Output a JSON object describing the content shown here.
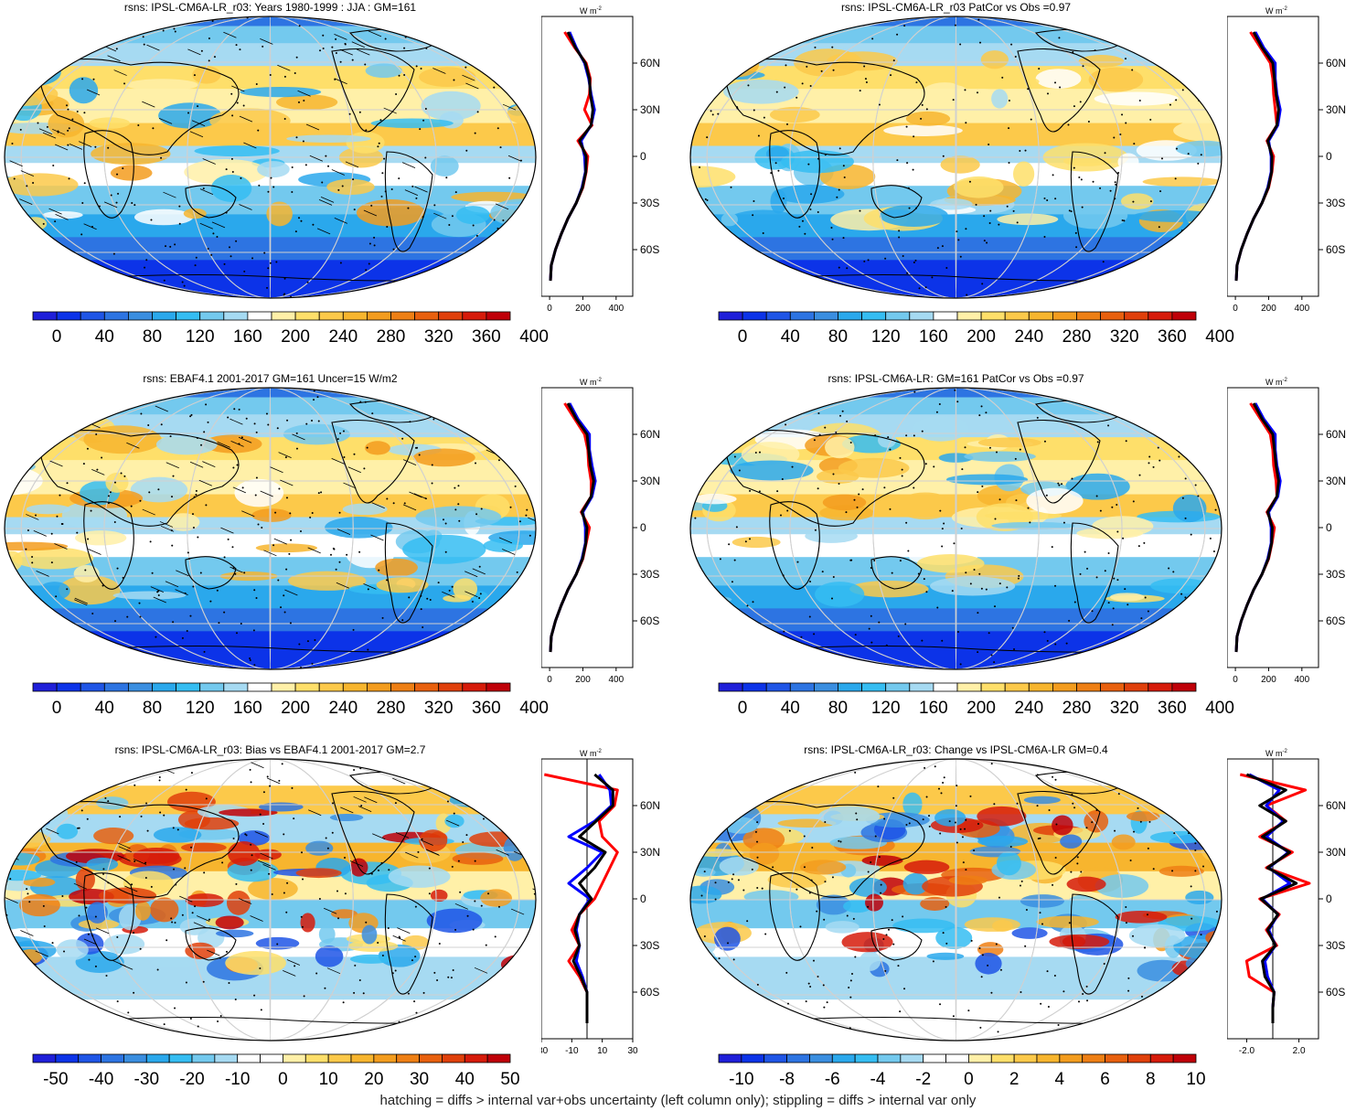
{
  "footer": "hatching = diffs > internal var+obs uncertainty (left column only); stippling = diffs > internal var only",
  "colors": {
    "abs": [
      "#1f1fd9",
      "#0c33e8",
      "#1f55e6",
      "#2d74e2",
      "#3a8ee0",
      "#2aa8ec",
      "#35bdf2",
      "#73c9ee",
      "#a6daf2",
      "#ffffff",
      "#fff0a8",
      "#fedf6a",
      "#fcc94a",
      "#f7b52e",
      "#f39c1e",
      "#ee7f14",
      "#e8600e",
      "#e0400b",
      "#d61b0a",
      "#bf0008"
    ],
    "diff": [
      "#1f1fd9",
      "#0c33e8",
      "#1f55e6",
      "#2d74e2",
      "#3a8ee0",
      "#2aa8ec",
      "#35bdf2",
      "#73c9ee",
      "#a6daf2",
      "#ffffff",
      "#ffffff",
      "#fff0a8",
      "#fedf6a",
      "#fcc94a",
      "#f7b52e",
      "#f39c1e",
      "#ee7f14",
      "#e8600e",
      "#e0400b",
      "#d61b0a",
      "#bf0008"
    ]
  },
  "profile_axis": {
    "unit": "W m",
    "unit_sup": "-2",
    "lat_ticks": [
      "60N",
      "30N",
      "0",
      "30S",
      "60S"
    ],
    "lat_values": [
      60,
      30,
      0,
      -30,
      -60
    ]
  },
  "chart_data": [
    {
      "type": "heatmap",
      "title": "rsns: IPSL-CM6A-LR_r03: Years 1980-1999 : JJA : GM=161",
      "colorbar_labels": [
        "0",
        "40",
        "80",
        "120",
        "160",
        "200",
        "240",
        "280",
        "320",
        "360",
        "400"
      ],
      "palette": "abs",
      "hatching": true,
      "stippling": true,
      "zonal_profile": {
        "xticks": [
          "0",
          "200",
          "400"
        ],
        "xlim": [
          -50,
          500
        ],
        "lat": [
          80,
          70,
          60,
          50,
          40,
          30,
          20,
          10,
          0,
          -10,
          -20,
          -30,
          -40,
          -50,
          -60,
          -70,
          -80
        ],
        "series": [
          {
            "color": "#ff0000",
            "values": [
              90,
              150,
              220,
              245,
              240,
              210,
              255,
              170,
              230,
              220,
              200,
              160,
              110,
              70,
              35,
              10,
              5
            ]
          },
          {
            "color": "#0000ff",
            "values": [
              120,
              160,
              210,
              235,
              250,
              270,
              250,
              190,
              210,
              215,
              195,
              160,
              110,
              70,
              35,
              10,
              5
            ]
          },
          {
            "color": "#000000",
            "values": [
              110,
              155,
              215,
              240,
              245,
              260,
              250,
              180,
              220,
              218,
              198,
              160,
              110,
              70,
              35,
              10,
              5
            ]
          }
        ]
      }
    },
    {
      "type": "heatmap",
      "title": "rsns: IPSL-CM6A-LR_r03 PatCor vs Obs =0.97",
      "colorbar_labels": [
        "0",
        "40",
        "80",
        "120",
        "160",
        "200",
        "240",
        "280",
        "320",
        "360",
        "400"
      ],
      "palette": "abs",
      "hatching": false,
      "stippling": true,
      "zonal_profile": {
        "xticks": [
          "0",
          "200",
          "400"
        ],
        "xlim": [
          -50,
          500
        ],
        "lat": [
          80,
          70,
          60,
          50,
          40,
          30,
          20,
          10,
          0,
          -10,
          -20,
          -30,
          -40,
          -50,
          -60,
          -70,
          -80
        ],
        "series": [
          {
            "color": "#ff0000",
            "values": [
              90,
              150,
              210,
              225,
              230,
              240,
              250,
              190,
              230,
              220,
              200,
              160,
              110,
              70,
              35,
              10,
              5
            ]
          },
          {
            "color": "#0000ff",
            "values": [
              120,
              170,
              240,
              240,
              250,
              270,
              255,
              200,
              215,
              215,
              195,
              160,
              110,
              70,
              35,
              10,
              5
            ]
          },
          {
            "color": "#000000",
            "values": [
              110,
              160,
              225,
              235,
              245,
              260,
              250,
              195,
              220,
              218,
              198,
              160,
              110,
              70,
              35,
              10,
              5
            ]
          }
        ]
      }
    },
    {
      "type": "heatmap",
      "title": "rsns: EBAF4.1 2001-2017 GM=161 Uncer=15 W/m2",
      "colorbar_labels": [
        "0",
        "40",
        "80",
        "120",
        "160",
        "200",
        "240",
        "280",
        "320",
        "360",
        "400"
      ],
      "palette": "abs",
      "hatching": true,
      "stippling": true,
      "zonal_profile": {
        "xticks": [
          "0",
          "200",
          "400"
        ],
        "xlim": [
          -50,
          500
        ],
        "lat": [
          80,
          70,
          60,
          50,
          40,
          30,
          20,
          10,
          0,
          -10,
          -20,
          -30,
          -40,
          -50,
          -60,
          -70,
          -80
        ],
        "series": [
          {
            "color": "#ff0000",
            "values": [
              90,
              150,
              210,
              230,
              235,
              250,
              250,
              190,
              240,
              220,
              200,
              160,
              110,
              70,
              35,
              10,
              5
            ]
          },
          {
            "color": "#0000ff",
            "values": [
              120,
              170,
              240,
              240,
              255,
              275,
              255,
              200,
              215,
              215,
              195,
              160,
              110,
              70,
              35,
              10,
              5
            ]
          },
          {
            "color": "#000000",
            "values": [
              110,
              160,
              225,
              235,
              245,
              265,
              250,
              195,
              225,
              218,
              198,
              160,
              110,
              70,
              35,
              10,
              5
            ]
          }
        ]
      }
    },
    {
      "type": "heatmap",
      "title": "rsns: IPSL-CM6A-LR: GM=161 PatCor vs Obs =0.97",
      "colorbar_labels": [
        "0",
        "40",
        "80",
        "120",
        "160",
        "200",
        "240",
        "280",
        "320",
        "360",
        "400"
      ],
      "palette": "abs",
      "hatching": false,
      "stippling": true,
      "zonal_profile": {
        "xticks": [
          "0",
          "200",
          "400"
        ],
        "xlim": [
          -50,
          500
        ],
        "lat": [
          80,
          70,
          60,
          50,
          40,
          30,
          20,
          10,
          0,
          -10,
          -20,
          -30,
          -40,
          -50,
          -60,
          -70,
          -80
        ],
        "series": [
          {
            "color": "#ff0000",
            "values": [
              90,
              150,
              210,
              225,
              230,
              245,
              250,
              190,
              235,
              220,
              200,
              160,
              110,
              70,
              35,
              10,
              5
            ]
          },
          {
            "color": "#0000ff",
            "values": [
              120,
              170,
              240,
              240,
              250,
              270,
              255,
              200,
              215,
              215,
              195,
              160,
              110,
              70,
              35,
              10,
              5
            ]
          },
          {
            "color": "#000000",
            "values": [
              110,
              160,
              225,
              235,
              245,
              260,
              250,
              195,
              222,
              218,
              198,
              160,
              110,
              70,
              35,
              10,
              5
            ]
          }
        ]
      }
    },
    {
      "type": "heatmap",
      "title": "rsns: IPSL-CM6A-LR_r03: Bias vs EBAF4.1 2001-2017 GM=2.7",
      "colorbar_labels": [
        "-50",
        "-40",
        "-30",
        "-20",
        "-10",
        "0",
        "10",
        "20",
        "30",
        "40",
        "50"
      ],
      "palette": "diff",
      "hatching": true,
      "stippling": true,
      "zonal_profile": {
        "xticks": [
          "-30",
          "-10",
          "10",
          "30"
        ],
        "xlim": [
          -30,
          30
        ],
        "zero_line": true,
        "lat": [
          80,
          70,
          60,
          50,
          40,
          30,
          20,
          10,
          0,
          -10,
          -20,
          -30,
          -40,
          -50,
          -60,
          -70,
          -80
        ],
        "series": [
          {
            "color": "#ff0000",
            "values": [
              -28,
              20,
              18,
              8,
              10,
              20,
              15,
              10,
              5,
              -5,
              -10,
              -5,
              -12,
              -5,
              0,
              0,
              0
            ]
          },
          {
            "color": "#0000ff",
            "values": [
              8,
              15,
              16,
              5,
              -12,
              10,
              0,
              -12,
              2,
              -5,
              -7,
              -5,
              -7,
              -3,
              0,
              0,
              0
            ]
          },
          {
            "color": "#000000",
            "values": [
              5,
              17,
              17,
              6,
              -5,
              12,
              5,
              -5,
              3,
              -5,
              -8,
              -5,
              -9,
              -4,
              0,
              0,
              0
            ]
          }
        ]
      }
    },
    {
      "type": "heatmap",
      "title": "rsns: IPSL-CM6A-LR_r03: Change vs IPSL-CM6A-LR GM=0.4",
      "colorbar_labels": [
        "-10",
        "-8",
        "-6",
        "-4",
        "-2",
        "0",
        "2",
        "4",
        "6",
        "8",
        "10"
      ],
      "palette": "diff",
      "hatching": false,
      "stippling": true,
      "zonal_profile": {
        "xticks": [
          "-2.0",
          "2.0"
        ],
        "xlim": [
          -3.5,
          3.5
        ],
        "zero_line": true,
        "lat": [
          80,
          70,
          60,
          50,
          40,
          30,
          20,
          10,
          0,
          -10,
          -20,
          -30,
          -40,
          -50,
          -60,
          -70,
          -80
        ],
        "series": [
          {
            "color": "#ff0000",
            "values": [
              -2.5,
              2.5,
              -0.5,
              1.0,
              -1.0,
              1.5,
              -0.5,
              2.8,
              -1.0,
              0.5,
              -0.5,
              0.3,
              -2.0,
              -1.8,
              0.1,
              0,
              0
            ]
          },
          {
            "color": "#0000ff",
            "values": [
              -1.8,
              0.5,
              -0.5,
              0.8,
              -0.5,
              1.2,
              -0.3,
              1.3,
              -0.8,
              0.4,
              -0.3,
              0.2,
              -0.6,
              -0.4,
              0.1,
              0,
              0
            ]
          },
          {
            "color": "#000000",
            "values": [
              -2.0,
              1.0,
              -1.0,
              1.0,
              -0.8,
              1.3,
              -0.4,
              1.8,
              -0.9,
              0.4,
              -0.4,
              0.2,
              -0.8,
              -0.6,
              0.1,
              0,
              0
            ]
          }
        ]
      }
    }
  ]
}
